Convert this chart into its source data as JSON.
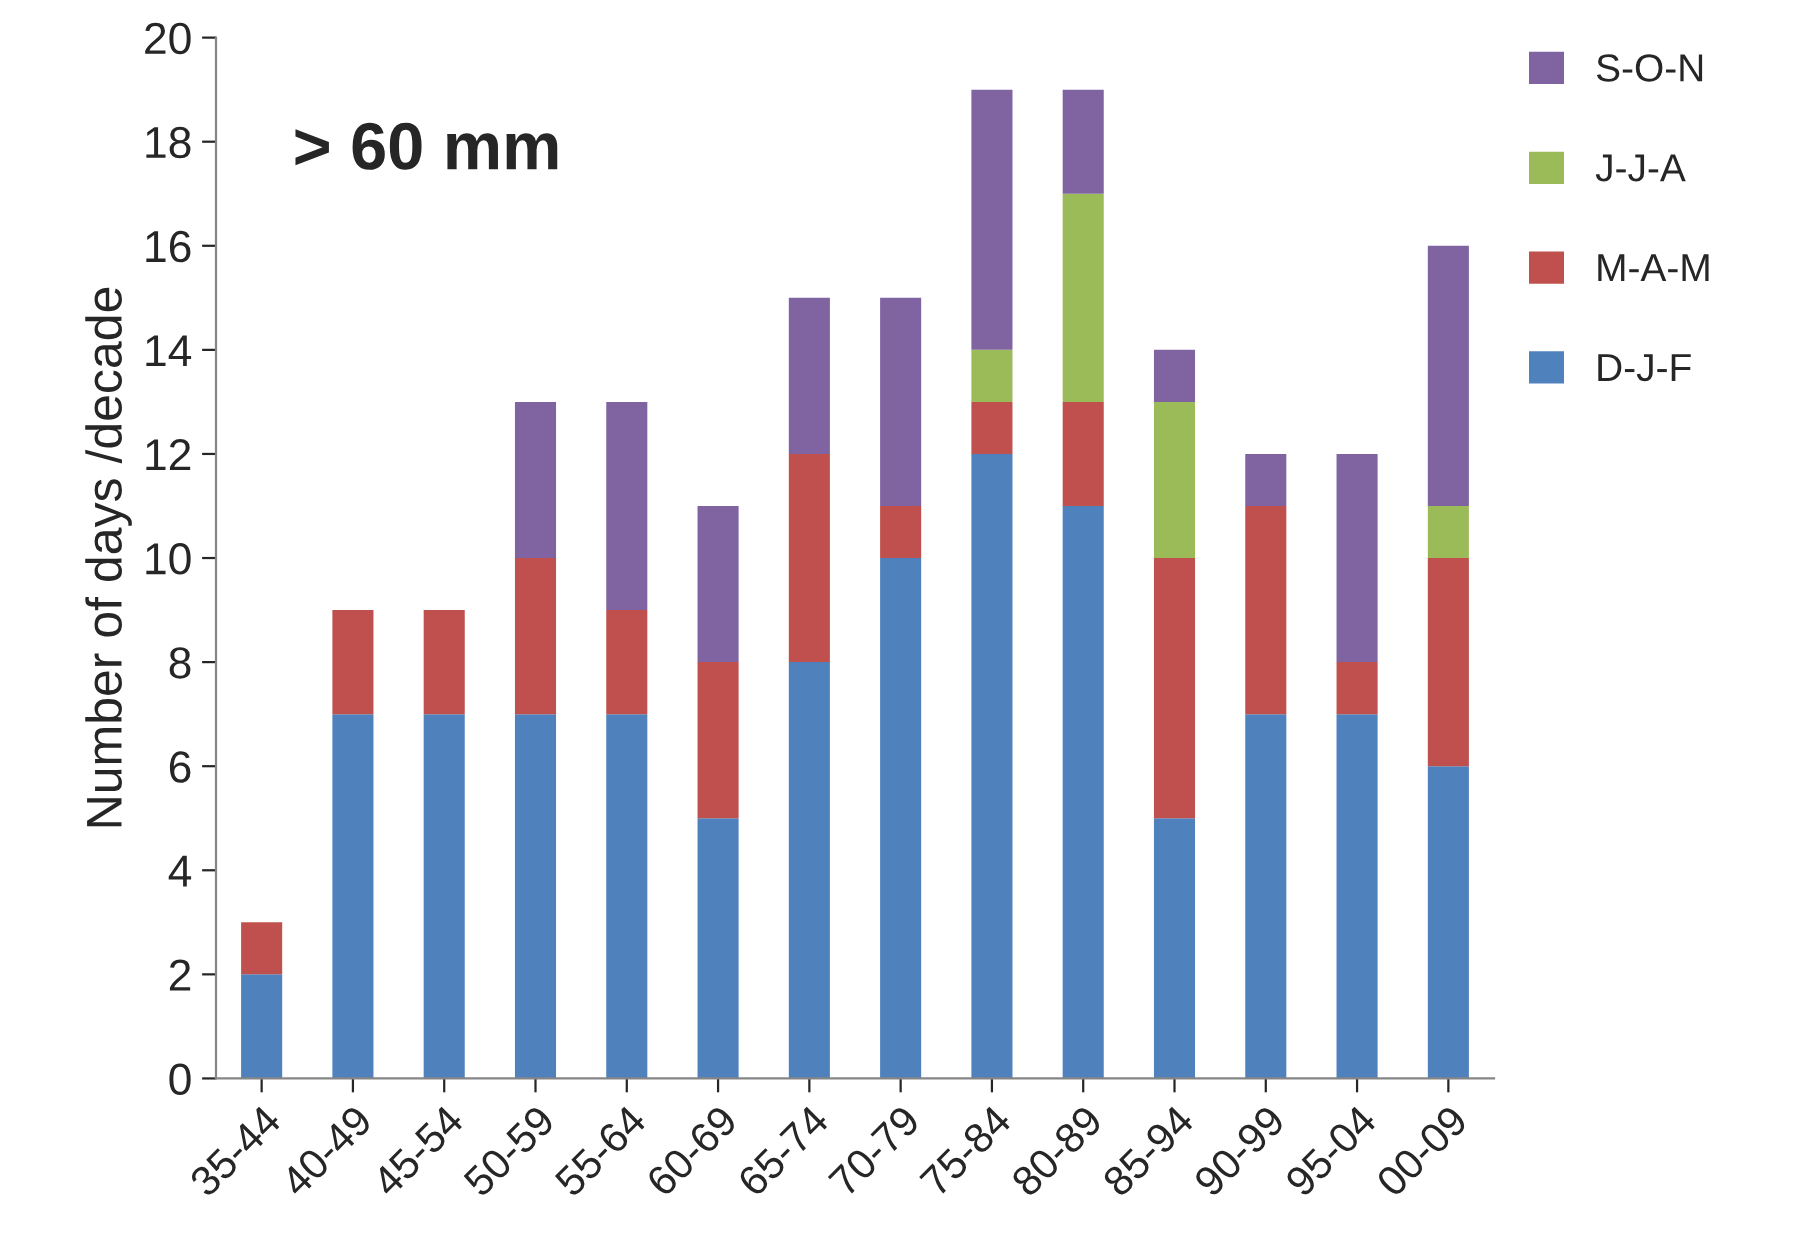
{
  "chart_data": {
    "type": "bar",
    "stacked": true,
    "ylabel": "Number of days /decade",
    "annotations": [
      "> 60 mm"
    ],
    "categories": [
      "35-44",
      "40-49",
      "45-54",
      "50-59",
      "55-64",
      "60-69",
      "65-74",
      "70-79",
      "75-84",
      "80-89",
      "85-94",
      "90-99",
      "95-04",
      "00-09"
    ],
    "series": [
      {
        "name": "D-J-F",
        "color": "#4f81bd",
        "values": [
          2,
          7,
          7,
          7,
          7,
          5,
          8,
          10,
          12,
          11,
          5,
          7,
          7,
          6
        ]
      },
      {
        "name": "M-A-M",
        "color": "#c0504d",
        "values": [
          1,
          2,
          2,
          3,
          2,
          3,
          4,
          1,
          1,
          2,
          5,
          4,
          1,
          4
        ]
      },
      {
        "name": "J-J-A",
        "color": "#9bbb59",
        "values": [
          0,
          0,
          0,
          0,
          0,
          0,
          0,
          0,
          1,
          4,
          3,
          0,
          0,
          1
        ]
      },
      {
        "name": "S-O-N",
        "color": "#8064a2",
        "values": [
          0,
          0,
          0,
          3,
          4,
          3,
          3,
          4,
          5,
          2,
          1,
          1,
          4,
          5
        ]
      }
    ],
    "ylim": [
      0,
      20
    ],
    "yticks": [
      0,
      2,
      4,
      6,
      8,
      10,
      12,
      14,
      16,
      18,
      20
    ],
    "grid": false,
    "legend": "top right"
  }
}
